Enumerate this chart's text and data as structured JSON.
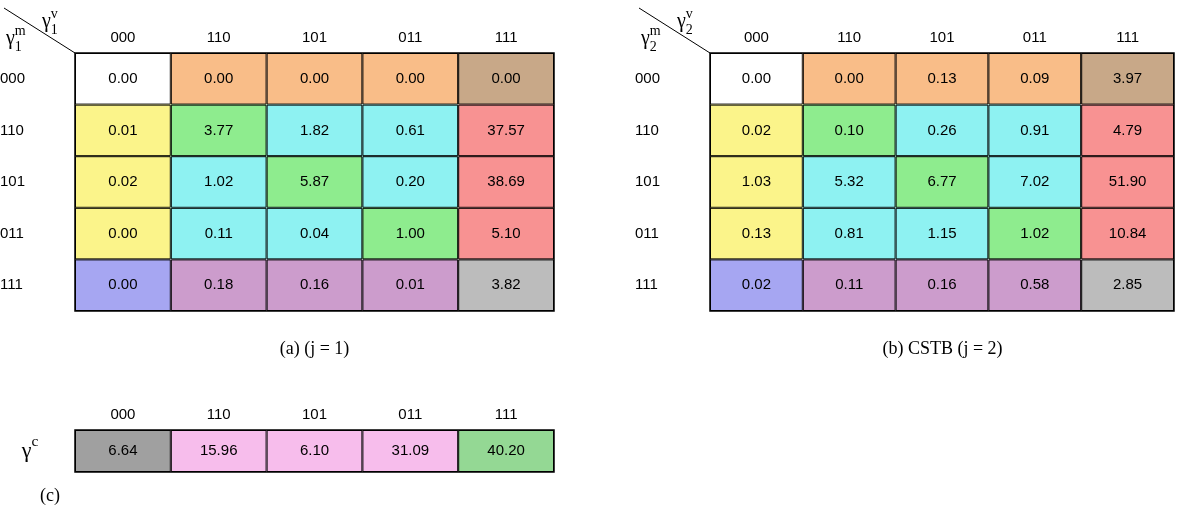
{
  "chart_data": [
    {
      "type": "heatmap",
      "data_labels": true,
      "title": "(a) (j = 1)",
      "xlabel": "γ$_{1}$$^{v}$",
      "ylabel": "γ$_{1}$$^{m}$",
      "categories": [
        "000",
        "110",
        "101",
        "011",
        "111"
      ],
      "y_categories": [
        "000",
        "110",
        "101",
        "011",
        "111"
      ],
      "cells": [
        [
          0.0,
          0.0,
          0.0,
          0.0,
          0.0
        ],
        [
          0.01,
          3.77,
          1.82,
          0.61,
          37.57
        ],
        [
          0.02,
          1.02,
          5.87,
          0.2,
          38.69
        ],
        [
          0.0,
          0.11,
          0.04,
          1.0,
          5.1
        ],
        [
          0.0,
          0.18,
          0.16,
          0.01,
          3.82
        ]
      ],
      "cell_labels": [
        [
          "0.00",
          "0.00",
          "0.00",
          "0.00",
          "0.00"
        ],
        [
          "0.01",
          "3.77",
          "1.82",
          "0.61",
          "37.57"
        ],
        [
          "0.02",
          "1.02",
          "5.87",
          "0.20",
          "38.69"
        ],
        [
          "0.00",
          "0.11",
          "0.04",
          "1.00",
          "5.10"
        ],
        [
          "0.00",
          "0.18",
          "0.16",
          "0.01",
          "3.82"
        ]
      ],
      "colors": [
        [
          "#ffffff",
          "#f9bd88",
          "#f9bd88",
          "#f9bd88",
          "#c8a888"
        ],
        [
          "#fbf48a",
          "#8eec8e",
          "#8ef2f2",
          "#8ef2f2",
          "#f89292"
        ],
        [
          "#fbf48a",
          "#8ef2f2",
          "#8eec8e",
          "#8ef2f2",
          "#f89292"
        ],
        [
          "#fbf48a",
          "#8ef2f2",
          "#8ef2f2",
          "#8eec8e",
          "#f89292"
        ],
        [
          "#a6a6f2",
          "#cc9ccc",
          "#cc9ccc",
          "#cc9ccc",
          "#bcbcbc"
        ]
      ]
    },
    {
      "type": "heatmap",
      "data_labels": true,
      "title": "(b) CSTB (j = 2)",
      "xlabel": "γ$_{2}$$^{v}$",
      "ylabel": "γ$_{2}$$^{m}$",
      "categories": [
        "000",
        "110",
        "101",
        "011",
        "111"
      ],
      "y_categories": [
        "000",
        "110",
        "101",
        "011",
        "111"
      ],
      "cells": [
        [
          0.0,
          0.0,
          0.13,
          0.09,
          3.97
        ],
        [
          0.02,
          0.1,
          0.26,
          0.91,
          4.79
        ],
        [
          1.03,
          5.32,
          6.77,
          7.02,
          51.9
        ],
        [
          0.13,
          0.81,
          1.15,
          1.02,
          10.84
        ],
        [
          0.02,
          0.11,
          0.16,
          0.58,
          2.85
        ]
      ],
      "cell_labels": [
        [
          "0.00",
          "0.00",
          "0.13",
          "0.09",
          "3.97"
        ],
        [
          "0.02",
          "0.10",
          "0.26",
          "0.91",
          "4.79"
        ],
        [
          "1.03",
          "5.32",
          "6.77",
          "7.02",
          "51.90"
        ],
        [
          "0.13",
          "0.81",
          "1.15",
          "1.02",
          "10.84"
        ],
        [
          "0.02",
          "0.11",
          "0.16",
          "0.58",
          "2.85"
        ]
      ],
      "colors": [
        [
          "#ffffff",
          "#f9bd88",
          "#f9bd88",
          "#f9bd88",
          "#c8a888"
        ],
        [
          "#fbf48a",
          "#8eec8e",
          "#8ef2f2",
          "#8ef2f2",
          "#f89292"
        ],
        [
          "#fbf48a",
          "#8ef2f2",
          "#8eec8e",
          "#8ef2f2",
          "#f89292"
        ],
        [
          "#fbf48a",
          "#8ef2f2",
          "#8ef2f2",
          "#8eec8e",
          "#f89292"
        ],
        [
          "#a6a6f2",
          "#cc9ccc",
          "#cc9ccc",
          "#cc9ccc",
          "#bcbcbc"
        ]
      ]
    },
    {
      "type": "heatmap",
      "data_labels": true,
      "title": "(c)",
      "categories": [
        "000",
        "110",
        "101",
        "011",
        "111"
      ],
      "y_categories": [
        "γ$^{c}$"
      ],
      "cells": [
        [
          6.64,
          15.96,
          6.1,
          31.09,
          40.2
        ]
      ],
      "cell_labels": [
        [
          "6.64",
          "15.96",
          "6.10",
          "31.09",
          "40.20"
        ]
      ],
      "colors": [
        [
          "#a0a0a0",
          "#f7bdec",
          "#f7bdec",
          "#f7bdec",
          "#94d894"
        ]
      ]
    }
  ]
}
